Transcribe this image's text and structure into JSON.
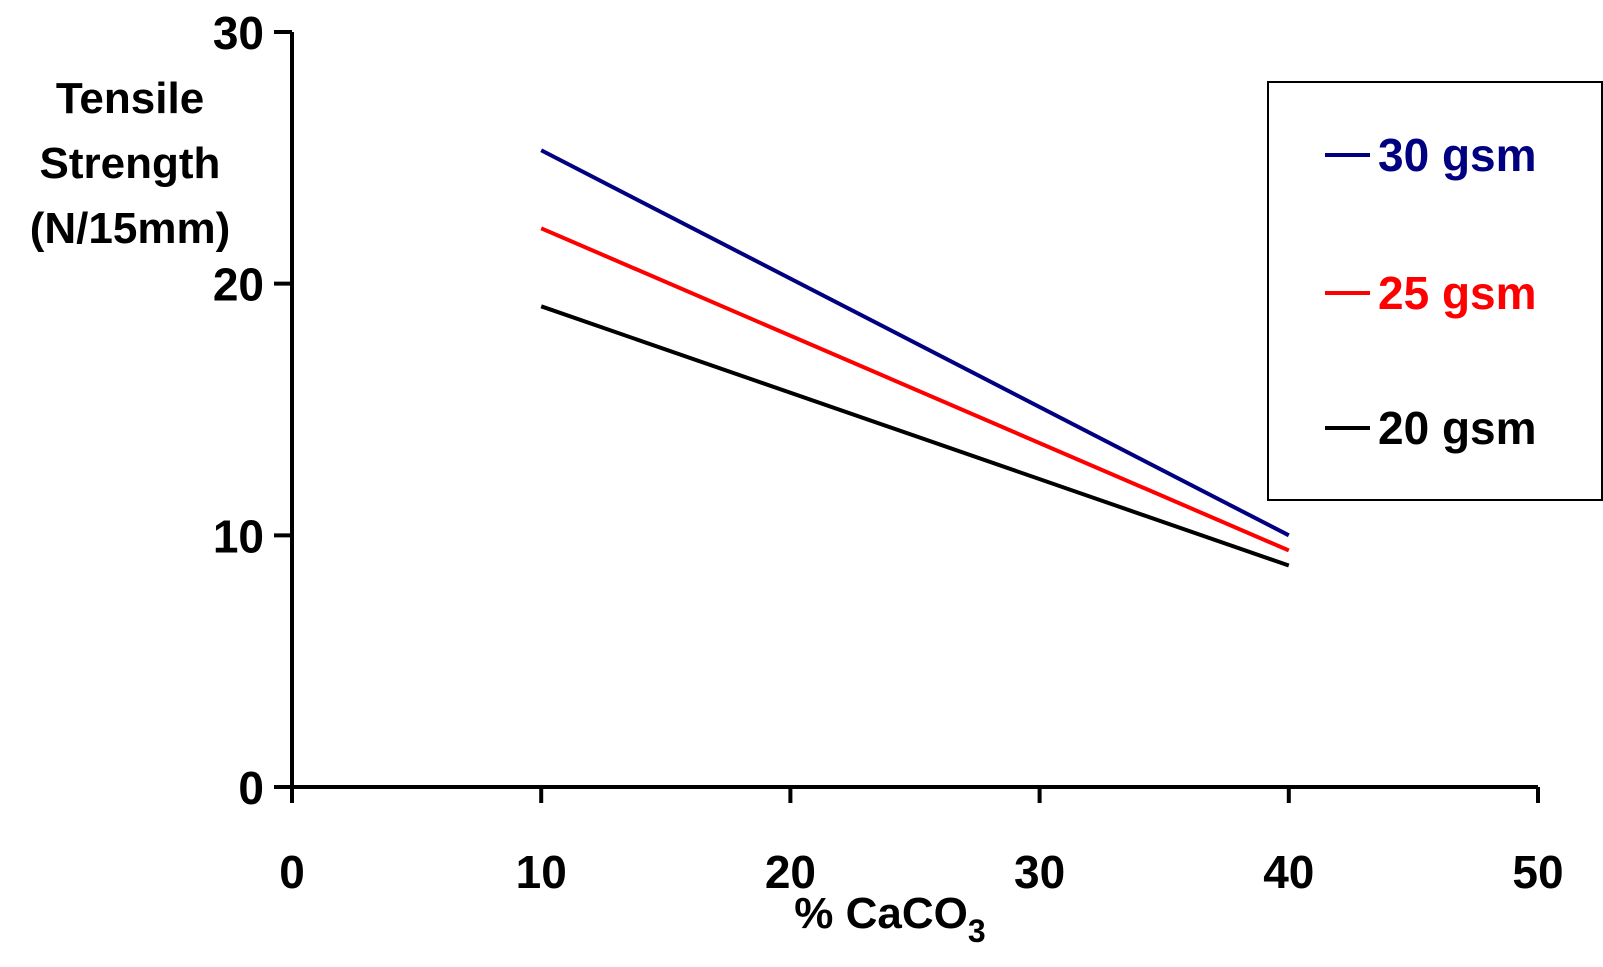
{
  "chart_data": {
    "type": "line",
    "xlabel": "% CaCO",
    "xlabel_subscript": "3",
    "ylabel_lines": [
      "Tensile",
      "Strength",
      "(N/15mm)"
    ],
    "xlim": [
      0,
      50
    ],
    "ylim": [
      0,
      30
    ],
    "x_ticks": [
      0,
      10,
      20,
      30,
      40,
      50
    ],
    "y_ticks": [
      0,
      10,
      20,
      30
    ],
    "grid": false,
    "legend_position": "top-right",
    "series": [
      {
        "name": "30 gsm",
        "color": "#000080",
        "x": [
          10,
          40
        ],
        "y": [
          25.3,
          10.0
        ]
      },
      {
        "name": "25 gsm",
        "color": "#ff0000",
        "x": [
          10,
          40
        ],
        "y": [
          22.2,
          9.4
        ]
      },
      {
        "name": "20 gsm",
        "color": "#000000",
        "x": [
          10,
          40
        ],
        "y": [
          19.1,
          8.8
        ]
      }
    ]
  }
}
